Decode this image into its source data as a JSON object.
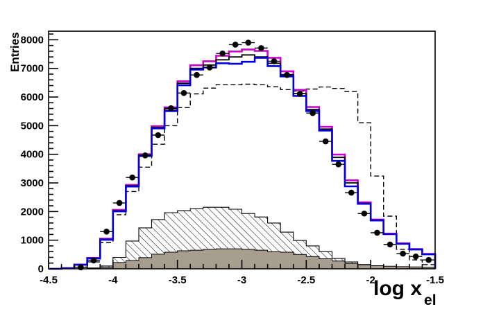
{
  "chart_data": {
    "type": "histogram-overlay",
    "title": "",
    "xlabel": "log x",
    "xlabel_subscript": "el",
    "ylabel": "Entries",
    "xlim": [
      -4.5,
      -1.5
    ],
    "ylim": [
      0,
      8300
    ],
    "grid": false,
    "legend_position": "none",
    "x_major_ticks": [
      -4.5,
      -4,
      -3.5,
      -3,
      -2.5,
      -2,
      -1.5
    ],
    "x_major_tick_labels": [
      "-4.5",
      "-4",
      "-3.5",
      "-3",
      "-2.5",
      "-2",
      "-1.5"
    ],
    "x_minor_step": 0.1,
    "y_major_ticks": [
      0,
      1000,
      2000,
      3000,
      4000,
      5000,
      6000,
      7000,
      8000
    ],
    "y_major_tick_labels": [
      "0",
      "1000",
      "2000",
      "3000",
      "4000",
      "5000",
      "6000",
      "7000",
      "8000"
    ],
    "y_minor_step": 200,
    "bins": {
      "start": -4.5,
      "width": 0.1,
      "count": 30
    },
    "histograms": [
      {
        "name": "hatched-background-histogram",
        "style": "hatched-fill",
        "color": "#000000",
        "line_width": 1.1,
        "values": [
          0,
          0,
          0,
          30,
          100,
          400,
          970,
          1430,
          1720,
          1960,
          2030,
          2100,
          2150,
          2150,
          2080,
          1930,
          1810,
          1600,
          1280,
          990,
          800,
          600,
          360,
          240,
          150,
          100,
          70,
          50,
          35,
          25
        ]
      },
      {
        "name": "gray-filled-histogram",
        "style": "solid-fill",
        "color": "#a79e90",
        "outline": "#000000",
        "line_width": 1,
        "values": [
          0,
          0,
          0,
          15,
          50,
          220,
          290,
          390,
          510,
          580,
          630,
          650,
          680,
          700,
          700,
          680,
          650,
          600,
          580,
          500,
          430,
          350,
          270,
          190,
          140,
          110,
          90,
          75,
          65,
          55
        ]
      },
      {
        "name": "dashed-black-histogram",
        "style": "line",
        "color": "#000000",
        "dash": [
          7,
          4
        ],
        "line_width": 1.4,
        "values": [
          0,
          10,
          60,
          240,
          920,
          1890,
          2700,
          3550,
          4350,
          5000,
          5630,
          6110,
          6310,
          6430,
          6430,
          6450,
          6430,
          6360,
          6260,
          6210,
          6280,
          6350,
          6300,
          6190,
          5100,
          3240,
          1840,
          680,
          310,
          145
        ]
      },
      {
        "name": "magenta-histogram",
        "style": "line",
        "color": "#cc00cc",
        "line_width": 2.6,
        "values": [
          0,
          25,
          150,
          380,
          1050,
          2060,
          2930,
          4000,
          4980,
          5640,
          6550,
          7110,
          7250,
          7440,
          7590,
          7660,
          7610,
          7370,
          6900,
          6250,
          5650,
          4960,
          3990,
          3090,
          2320,
          1720,
          1230,
          890,
          690,
          520
        ]
      },
      {
        "name": "black-solid-histogram",
        "style": "line",
        "color": "#000000",
        "line_width": 1.8,
        "values": [
          0,
          20,
          145,
          370,
          1030,
          2030,
          2900,
          3970,
          4940,
          5580,
          6480,
          7000,
          7120,
          7300,
          7400,
          7470,
          7400,
          7180,
          6780,
          6120,
          5560,
          4880,
          3890,
          3000,
          2290,
          1700,
          1215,
          875,
          680,
          510
        ]
      },
      {
        "name": "blue-histogram",
        "style": "line",
        "color": "#0000dd",
        "line_width": 2.6,
        "values": [
          0,
          20,
          140,
          360,
          1015,
          2005,
          2875,
          3940,
          4905,
          5510,
          6410,
          6960,
          7030,
          7180,
          7160,
          7230,
          7370,
          7080,
          6720,
          6040,
          5510,
          4830,
          3770,
          2880,
          2270,
          1690,
          1210,
          870,
          675,
          505
        ]
      }
    ],
    "data_points": {
      "name": "data-points",
      "marker": "filled-circle",
      "color": "#000000",
      "radius": 4.3,
      "xerr": 0.05,
      "x": [
        -4.25,
        -4.15,
        -4.05,
        -3.95,
        -3.85,
        -3.75,
        -3.65,
        -3.55,
        -3.45,
        -3.35,
        -3.25,
        -3.15,
        -3.05,
        -2.95,
        -2.85,
        -2.75,
        -2.65,
        -2.55,
        -2.45,
        -2.35,
        -2.25,
        -2.15,
        -2.05,
        -1.95,
        -1.85,
        -1.75,
        -1.65,
        -1.55
      ],
      "y": [
        50,
        290,
        1300,
        2300,
        3190,
        3960,
        4670,
        5610,
        6140,
        6770,
        7030,
        7520,
        7830,
        7900,
        7710,
        7250,
        6770,
        6115,
        5440,
        4450,
        3650,
        2660,
        1930,
        1260,
        850,
        530,
        430,
        310
      ]
    }
  }
}
